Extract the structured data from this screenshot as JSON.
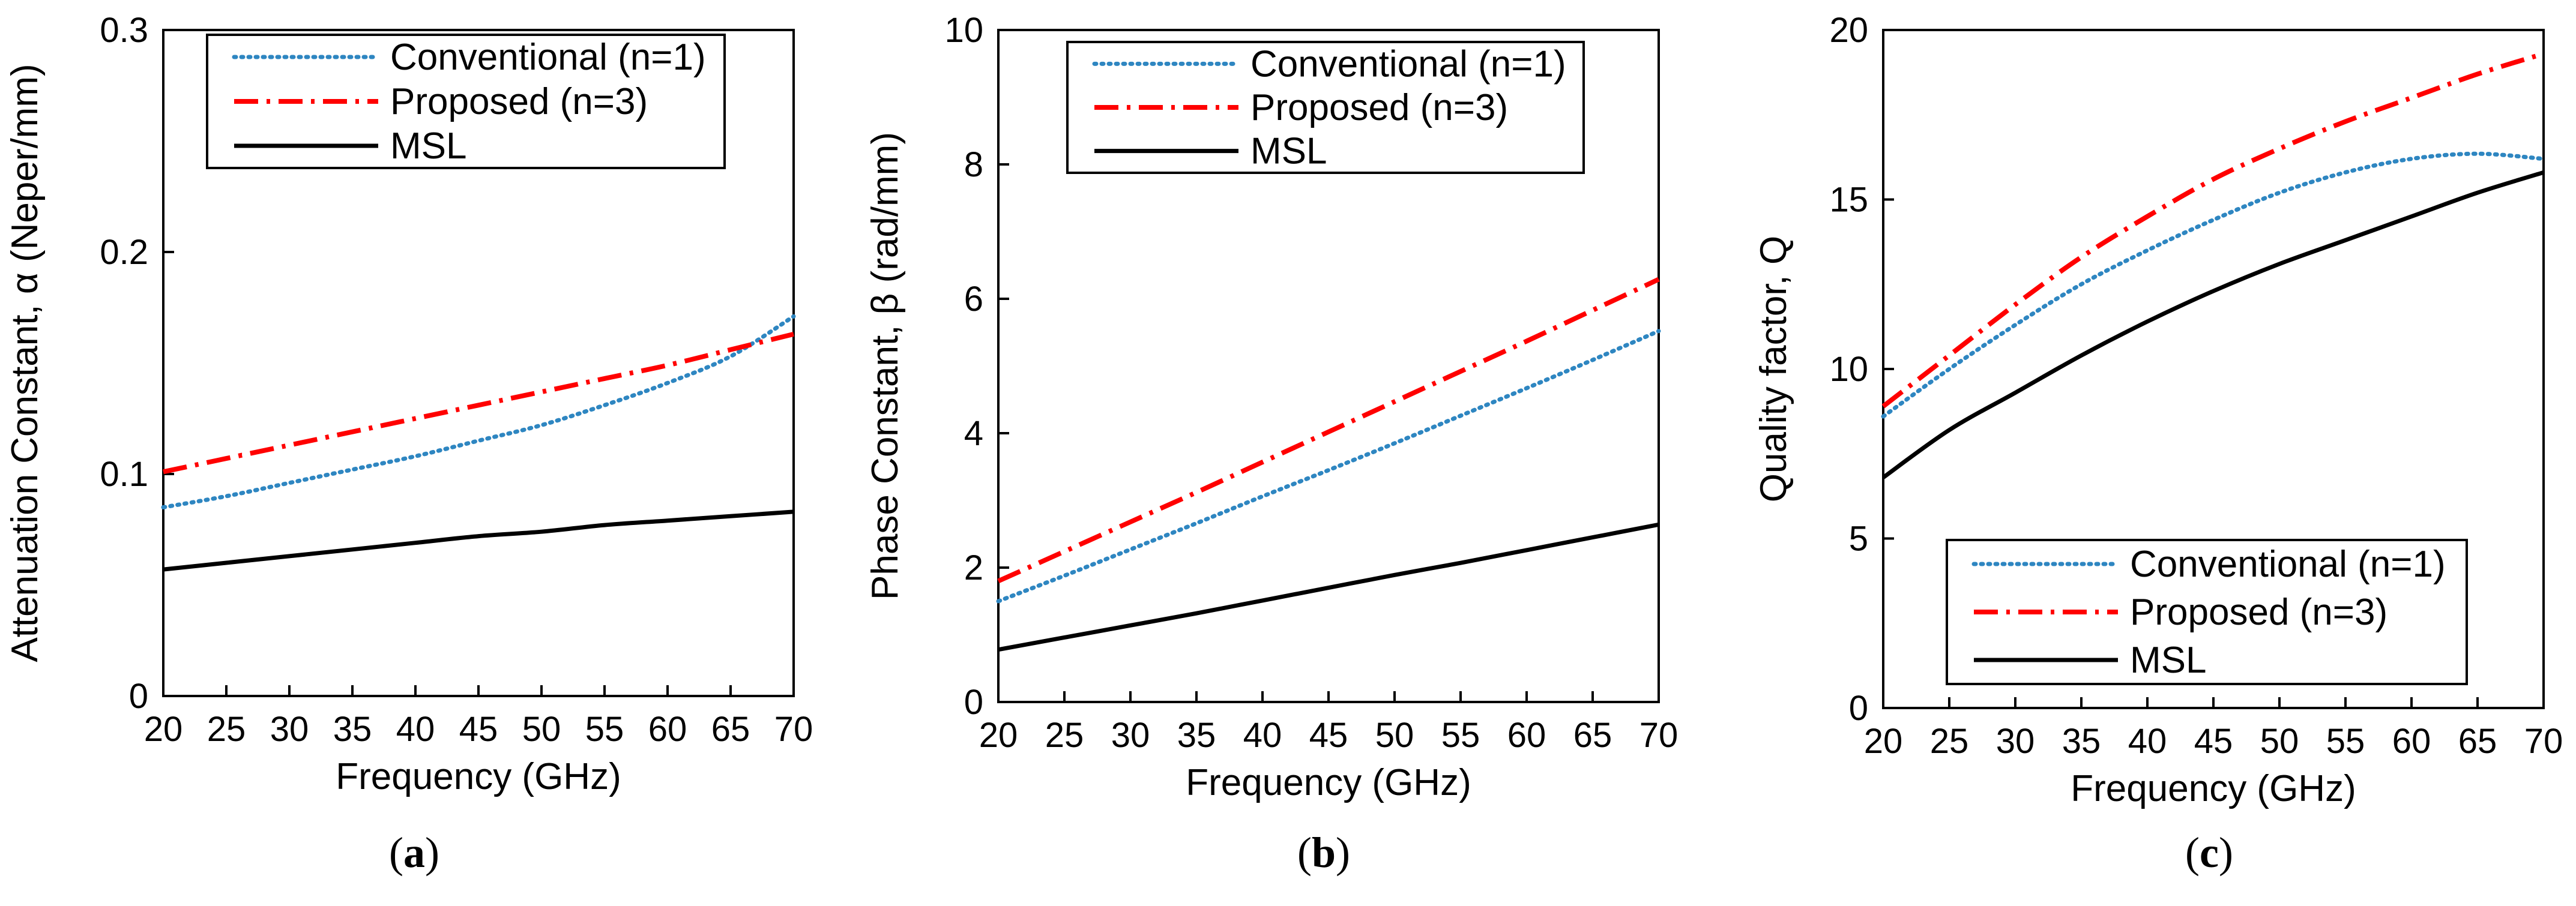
{
  "chart_data": [
    {
      "id": "a",
      "type": "line",
      "caption_open": "(",
      "caption_letter": "a",
      "caption_close": ")",
      "xlabel": "Frequency (GHz)",
      "ylabel": "Attenuation Constant,  α (Neper/mm)",
      "xlim": [
        20,
        70
      ],
      "ylim": [
        0,
        0.3
      ],
      "xticks": [
        20,
        25,
        30,
        35,
        40,
        45,
        50,
        55,
        60,
        65,
        70
      ],
      "xtick_labels": [
        "20",
        "25",
        "30",
        "35",
        "40",
        "45",
        "50",
        "55",
        "60",
        "65",
        "70"
      ],
      "yticks": [
        0,
        0.1,
        0.2,
        0.3
      ],
      "ytick_labels": [
        "0",
        "0.1",
        "0.2",
        "0.3"
      ],
      "legend_position": "top",
      "x": [
        20,
        25,
        30,
        35,
        40,
        45,
        50,
        55,
        60,
        65,
        70
      ],
      "series": [
        {
          "name": "Conventional (n=1)",
          "style": "dotted",
          "color": "#2E86C1",
          "values": [
            0.085,
            0.09,
            0.096,
            0.102,
            0.108,
            0.115,
            0.122,
            0.131,
            0.141,
            0.153,
            0.171
          ]
        },
        {
          "name": "Proposed (n=3)",
          "style": "dashdot",
          "color": "#FF0000",
          "values": [
            0.101,
            0.107,
            0.113,
            0.119,
            0.125,
            0.131,
            0.137,
            0.143,
            0.149,
            0.156,
            0.163
          ]
        },
        {
          "name": "MSL",
          "style": "solid",
          "color": "#000000",
          "values": [
            0.057,
            0.06,
            0.063,
            0.066,
            0.069,
            0.072,
            0.074,
            0.077,
            0.079,
            0.081,
            0.083
          ]
        }
      ]
    },
    {
      "id": "b",
      "type": "line",
      "caption_open": "(",
      "caption_letter": "b",
      "caption_close": ")",
      "xlabel": "Frequency (GHz)",
      "ylabel": "Phase Constant, β (rad/mm)",
      "xlim": [
        20,
        70
      ],
      "ylim": [
        0,
        10
      ],
      "xticks": [
        20,
        25,
        30,
        35,
        40,
        45,
        50,
        55,
        60,
        65,
        70
      ],
      "xtick_labels": [
        "20",
        "25",
        "30",
        "35",
        "40",
        "45",
        "50",
        "55",
        "60",
        "65",
        "70"
      ],
      "yticks": [
        0,
        2,
        4,
        6,
        8,
        10
      ],
      "ytick_labels": [
        "0",
        "2",
        "4",
        "6",
        "8",
        "10"
      ],
      "legend_position": "top",
      "x": [
        20,
        25,
        30,
        35,
        40,
        45,
        50,
        55,
        60,
        65,
        70
      ],
      "series": [
        {
          "name": "Conventional (n=1)",
          "style": "dotted",
          "color": "#2E86C1",
          "values": [
            1.5,
            1.88,
            2.27,
            2.66,
            3.06,
            3.45,
            3.85,
            4.26,
            4.67,
            5.09,
            5.52
          ]
        },
        {
          "name": "Proposed (n=3)",
          "style": "dashdot",
          "color": "#FF0000",
          "values": [
            1.8,
            2.24,
            2.68,
            3.12,
            3.57,
            4.02,
            4.47,
            4.92,
            5.37,
            5.83,
            6.29
          ]
        },
        {
          "name": "MSL",
          "style": "solid",
          "color": "#000000",
          "values": [
            0.78,
            0.96,
            1.14,
            1.32,
            1.51,
            1.7,
            1.89,
            2.07,
            2.26,
            2.45,
            2.64
          ]
        }
      ]
    },
    {
      "id": "c",
      "type": "line",
      "caption_open": "(",
      "caption_letter": "c",
      "caption_close": ")",
      "xlabel": "Frequency (GHz)",
      "ylabel": "Quality factor, Q",
      "xlim": [
        20,
        70
      ],
      "ylim": [
        0,
        20
      ],
      "xticks": [
        20,
        25,
        30,
        35,
        40,
        45,
        50,
        55,
        60,
        65,
        70
      ],
      "xtick_labels": [
        "20",
        "25",
        "30",
        "35",
        "40",
        "45",
        "50",
        "55",
        "60",
        "65",
        "70"
      ],
      "yticks": [
        0,
        5,
        10,
        15,
        20
      ],
      "ytick_labels": [
        "0",
        "5",
        "10",
        "15",
        "20"
      ],
      "legend_position": "bottom",
      "x": [
        20,
        25,
        30,
        35,
        40,
        45,
        50,
        55,
        60,
        65,
        70
      ],
      "series": [
        {
          "name": "Conventional (n=1)",
          "style": "dotted",
          "color": "#2E86C1",
          "values": [
            8.6,
            10.0,
            11.3,
            12.5,
            13.5,
            14.4,
            15.2,
            15.8,
            16.2,
            16.35,
            16.2
          ]
        },
        {
          "name": "Proposed (n=3)",
          "style": "dashdot",
          "color": "#FF0000",
          "values": [
            8.9,
            10.4,
            11.9,
            13.3,
            14.5,
            15.6,
            16.5,
            17.3,
            18.0,
            18.7,
            19.3
          ]
        },
        {
          "name": "MSL",
          "style": "solid",
          "color": "#000000",
          "values": [
            6.8,
            8.2,
            9.3,
            10.4,
            11.4,
            12.3,
            13.1,
            13.8,
            14.5,
            15.2,
            15.8
          ]
        }
      ]
    }
  ]
}
